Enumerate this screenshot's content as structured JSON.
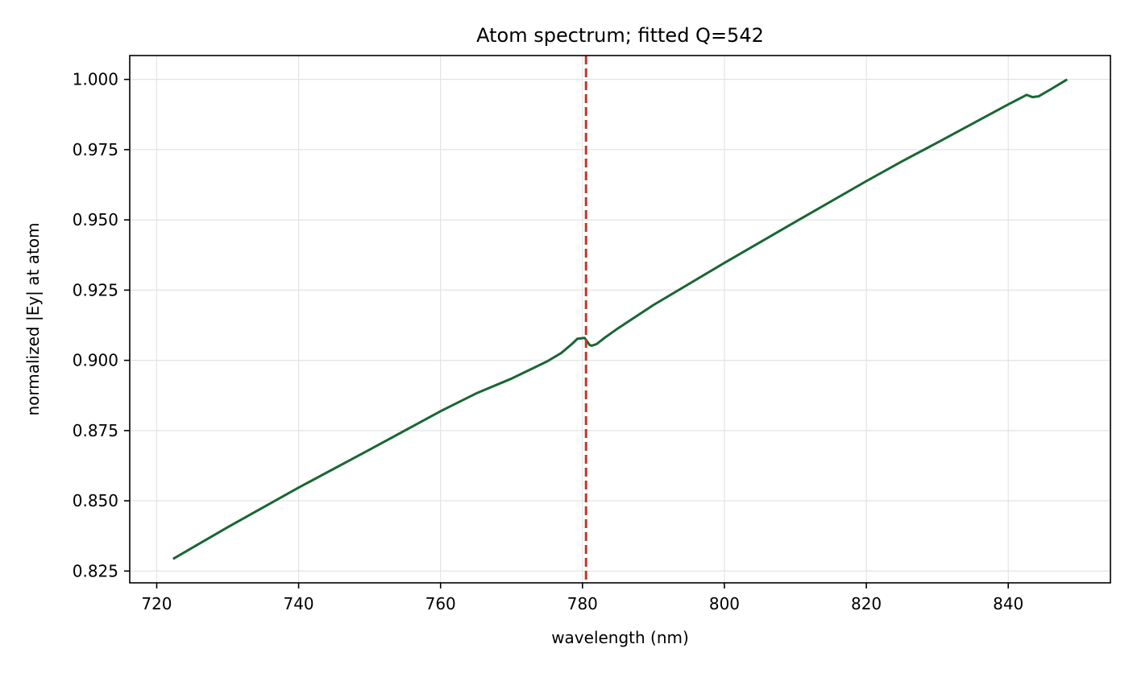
{
  "chart_data": {
    "type": "line",
    "title": "Atom spectrum; fitted Q=542",
    "xlabel": "wavelength (nm)",
    "ylabel": "normalized |Ey| at atom",
    "xlim": [
      716.2,
      854.4
    ],
    "ylim": [
      0.8208,
      1.0085
    ],
    "grid": true,
    "xticks": [
      720,
      740,
      760,
      780,
      800,
      820,
      840
    ],
    "xtick_labels": [
      "720",
      "740",
      "760",
      "780",
      "800",
      "820",
      "840"
    ],
    "yticks": [
      0.825,
      0.85,
      0.875,
      0.9,
      0.925,
      0.95,
      0.975,
      1.0
    ],
    "ytick_labels": [
      "0.825",
      "0.850",
      "0.875",
      "0.900",
      "0.925",
      "0.950",
      "0.975",
      "1.000"
    ],
    "series": [
      {
        "color": "#1a6634",
        "x": [
          722.3,
          730,
          740,
          750,
          760,
          765,
          770,
          775,
          777,
          778.5,
          779.3,
          780.3,
          780.7,
          781.0,
          781.3,
          782,
          783,
          785,
          790,
          800,
          810,
          820,
          825,
          830,
          835,
          840,
          842.6,
          843.4,
          844.3,
          846,
          848.3
        ],
        "y": [
          0.8293,
          0.8406,
          0.8547,
          0.8682,
          0.8819,
          0.8882,
          0.8935,
          0.8996,
          0.9026,
          0.9058,
          0.9077,
          0.908,
          0.9066,
          0.9055,
          0.9052,
          0.9058,
          0.9078,
          0.9114,
          0.9197,
          0.9347,
          0.9493,
          0.9638,
          0.9708,
          0.9775,
          0.9843,
          0.9911,
          0.9945,
          0.9937,
          0.994,
          0.9965,
          1.0
        ]
      }
    ],
    "annotations": [
      {
        "type": "vline",
        "x": 780.5,
        "style": "dashed",
        "color": "#c0392b"
      }
    ]
  }
}
